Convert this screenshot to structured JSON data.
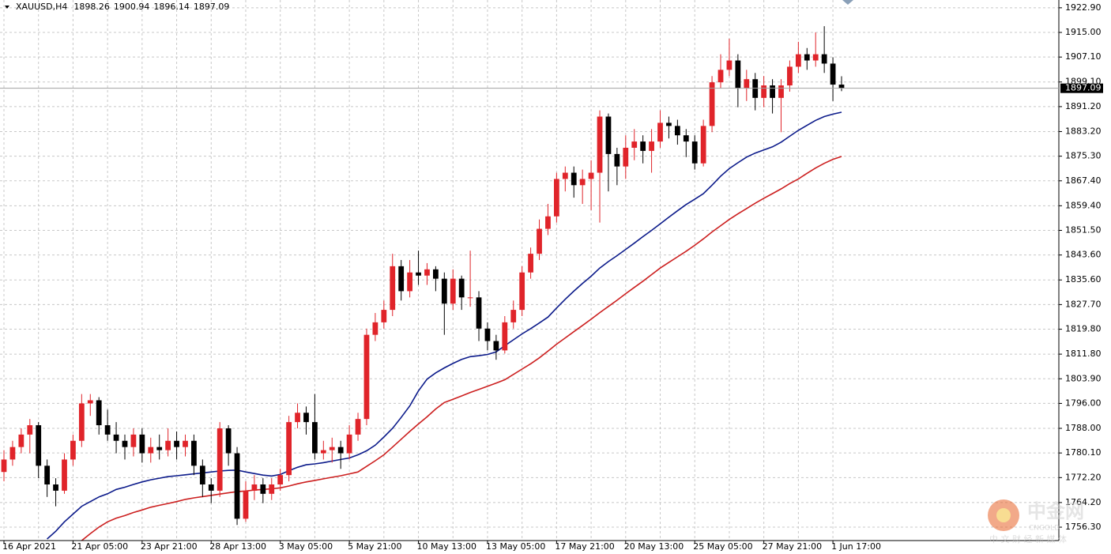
{
  "chart_data": {
    "type": "candlestick",
    "title": "XAUUSD,H4",
    "categories": [
      "16 Apr 2021",
      null,
      null,
      null,
      null,
      null,
      null,
      null,
      "21 Apr 05:00",
      null,
      null,
      null,
      null,
      null,
      null,
      null,
      "23 Apr 21:00",
      null,
      null,
      null,
      null,
      null,
      null,
      null,
      "28 Apr 13:00",
      null,
      null,
      null,
      null,
      null,
      null,
      null,
      "3 May 05:00",
      null,
      null,
      null,
      null,
      null,
      null,
      null,
      "5 May 21:00",
      null,
      null,
      null,
      null,
      null,
      null,
      null,
      "10 May 13:00",
      null,
      null,
      null,
      null,
      null,
      null,
      null,
      "13 May 05:00",
      null,
      null,
      null,
      null,
      null,
      null,
      null,
      "17 May 21:00",
      null,
      null,
      null,
      null,
      null,
      null,
      null,
      "20 May 13:00",
      null,
      null,
      null,
      null,
      null,
      null,
      null,
      "25 May 05:00",
      null,
      null,
      null,
      null,
      null,
      null,
      null,
      "27 May 21:00",
      null,
      null,
      null,
      null,
      null,
      null,
      null,
      "1 Jun 17:00",
      null
    ],
    "open": [
      1774,
      1778,
      1782,
      1786,
      1789,
      1776,
      1770,
      1768,
      1778,
      1784,
      1796,
      1797,
      1789,
      1786,
      1784,
      1782,
      1786,
      1780,
      1782,
      1781,
      1784,
      1782,
      1784,
      1776,
      1770,
      1768,
      1788,
      1780,
      1759,
      1768,
      1770,
      1767,
      1770,
      1773,
      1790,
      1793,
      1790,
      1780,
      1781,
      1782,
      1780,
      1786,
      1791,
      1818,
      1822,
      1826,
      1840,
      1832,
      1838,
      1837,
      1839,
      1836,
      1828,
      1836,
      1830,
      1830,
      1820,
      1816,
      1813,
      1822,
      1826,
      1838,
      1844,
      1852,
      1856,
      1868,
      1870,
      1866,
      1868,
      1870,
      1888,
      1876,
      1872,
      1878,
      1880,
      1877,
      1880,
      1886,
      1885,
      1882,
      1880,
      1873,
      1885,
      1899,
      1903,
      1906,
      1897,
      1900,
      1894,
      1898,
      1894,
      1898,
      1904,
      1908,
      1906,
      1908,
      1905,
      1898.26
    ],
    "high": [
      1781,
      1784,
      1788,
      1791,
      1790,
      1778,
      1772,
      1780,
      1786,
      1799,
      1799,
      1798,
      1794,
      1790,
      1786,
      1788,
      1788,
      1785,
      1786,
      1788,
      1787,
      1786,
      1786,
      1778,
      1772,
      1790,
      1789,
      1782,
      1771,
      1773,
      1772,
      1772,
      1775,
      1792,
      1796,
      1795,
      1799,
      1784,
      1785,
      1784,
      1789,
      1793,
      1820,
      1825,
      1829,
      1844,
      1842,
      1842,
      1845,
      1841,
      1840,
      1838,
      1839,
      1837,
      1845,
      1832,
      1822,
      1818,
      1824,
      1829,
      1840,
      1846,
      1855,
      1860,
      1870,
      1872,
      1872,
      1871,
      1874,
      1890,
      1889,
      1878,
      1882,
      1884,
      1882,
      1884,
      1890,
      1888,
      1887,
      1884,
      1882,
      1887,
      1901,
      1908,
      1913,
      1908,
      1903,
      1902,
      1901,
      1900,
      1900,
      1906,
      1912,
      1910,
      1915,
      1917,
      1907,
      1900.94
    ],
    "low": [
      1771,
      1776,
      1780,
      1780,
      1772,
      1766,
      1763,
      1767,
      1776,
      1782,
      1792,
      1786,
      1784,
      1780,
      1778,
      1779,
      1777,
      1777,
      1778,
      1779,
      1778,
      1779,
      1773,
      1766,
      1764,
      1766,
      1776,
      1757,
      1758,
      1765,
      1764,
      1765,
      1768,
      1771,
      1788,
      1786,
      1778,
      1778,
      1777,
      1775,
      1778,
      1784,
      1789,
      1816,
      1820,
      1824,
      1829,
      1830,
      1834,
      1834,
      1832,
      1818,
      1826,
      1826,
      1827,
      1816,
      1813,
      1810,
      1812,
      1820,
      1824,
      1836,
      1842,
      1850,
      1854,
      1864,
      1862,
      1860,
      1858,
      1854,
      1864,
      1866,
      1868,
      1874,
      1873,
      1870,
      1878,
      1881,
      1879,
      1875,
      1871,
      1872,
      1883,
      1897,
      1901,
      1891,
      1893,
      1890,
      1891,
      1889,
      1883,
      1896,
      1902,
      1903,
      1904,
      1902,
      1893,
      1896.14
    ],
    "close": [
      1778,
      1782,
      1786,
      1789,
      1776,
      1770,
      1768,
      1778,
      1784,
      1796,
      1797,
      1789,
      1786,
      1784,
      1782,
      1786,
      1780,
      1782,
      1781,
      1784,
      1782,
      1784,
      1776,
      1770,
      1768,
      1788,
      1780,
      1759,
      1768,
      1770,
      1767,
      1770,
      1773,
      1790,
      1793,
      1790,
      1780,
      1781,
      1782,
      1780,
      1786,
      1791,
      1818,
      1822,
      1826,
      1840,
      1832,
      1838,
      1837,
      1839,
      1836,
      1828,
      1836,
      1830,
      1830,
      1820,
      1816,
      1813,
      1822,
      1826,
      1838,
      1844,
      1852,
      1856,
      1868,
      1870,
      1866,
      1868,
      1870,
      1888,
      1876,
      1872,
      1878,
      1880,
      1877,
      1880,
      1886,
      1885,
      1882,
      1880,
      1873,
      1885,
      1899,
      1903,
      1906,
      1897,
      1900,
      1894,
      1898,
      1894,
      1898,
      1904,
      1908,
      1906,
      1908,
      1905,
      1898.26,
      1897.09
    ],
    "up_color": "#e0242a",
    "down_color": "#000000",
    "moving_averages": [
      {
        "color": "#0b1a8a",
        "values": [
          null,
          null,
          null,
          null,
          null,
          1752.5,
          1755,
          1758,
          1760.5,
          1763,
          1764.5,
          1766,
          1767,
          1768.4,
          1769.1,
          1770,
          1770.8,
          1771.5,
          1772,
          1772.5,
          1772.8,
          1773.1,
          1773.4,
          1773.7,
          1774,
          1774.3,
          1774.5,
          1774.6,
          1774,
          1773.5,
          1773,
          1772.7,
          1773.2,
          1774.4,
          1775.5,
          1776.3,
          1776.6,
          1777,
          1777.5,
          1778,
          1778.5,
          1779.5,
          1780.8,
          1782.6,
          1785.2,
          1788,
          1791.5,
          1795.2,
          1800,
          1803.8,
          1805.8,
          1807.4,
          1808.8,
          1810.1,
          1811,
          1811.3,
          1811.7,
          1812.5,
          1814.5,
          1816.4,
          1818.3,
          1820,
          1821.8,
          1823.7,
          1826.6,
          1829.4,
          1832,
          1834.5,
          1836.8,
          1839.4,
          1841.5,
          1843.4,
          1845.4,
          1847.4,
          1849.5,
          1851.5,
          1853.6,
          1855.7,
          1857.8,
          1859.8,
          1861.5,
          1863.3,
          1866,
          1868.9,
          1871.3,
          1873.2,
          1875,
          1876.3,
          1877.3,
          1878.3,
          1879.8,
          1881.7,
          1883.6,
          1885.2,
          1886.8,
          1888,
          1888.8,
          1889.4
        ]
      },
      {
        "color": "#cc1f1f",
        "values": [
          null,
          null,
          null,
          null,
          null,
          null,
          null,
          null,
          null,
          1752,
          1754.2,
          1756.3,
          1758,
          1759.2,
          1760,
          1761,
          1761.8,
          1762.7,
          1763.3,
          1763.9,
          1764.5,
          1765.2,
          1765.7,
          1766.1,
          1766.5,
          1766.9,
          1767.3,
          1767.7,
          1767.9,
          1768.2,
          1768.4,
          1768.6,
          1768.9,
          1769.5,
          1770.2,
          1770.8,
          1771.3,
          1771.8,
          1772.3,
          1772.8,
          1773.4,
          1774,
          1775.8,
          1777.6,
          1779.5,
          1782,
          1784.5,
          1787,
          1789.4,
          1791.7,
          1794.2,
          1796.3,
          1797.3,
          1798.4,
          1799.5,
          1800.5,
          1801.5,
          1802.5,
          1803.6,
          1805.3,
          1807,
          1808.7,
          1810.6,
          1812.8,
          1815,
          1817,
          1819,
          1821,
          1823,
          1825.1,
          1827.1,
          1829.1,
          1831.2,
          1833.2,
          1835.2,
          1837.3,
          1839.4,
          1841.2,
          1843,
          1844.8,
          1846.7,
          1848.8,
          1851,
          1853,
          1855,
          1856.8,
          1858.5,
          1860.2,
          1861.8,
          1863.3,
          1864.8,
          1866.5,
          1868,
          1869.8,
          1871.5,
          1873,
          1874.3,
          1875.2
        ]
      }
    ],
    "ylim": [
      1752.0,
      1925.4
    ],
    "yticks": [
      {
        "value": 1922.9,
        "label": "1922.90"
      },
      {
        "value": 1915,
        "label": "1915.00"
      },
      {
        "value": 1907.1,
        "label": "1907.10"
      },
      {
        "value": 1899.1,
        "label": "1899.10"
      },
      {
        "value": 1891.2,
        "label": "1891.20"
      },
      {
        "value": 1883.2,
        "label": "1883.20"
      },
      {
        "value": 1875.3,
        "label": "1875.30"
      },
      {
        "value": 1867.4,
        "label": "1867.40"
      },
      {
        "value": 1859.4,
        "label": "1859.40"
      },
      {
        "value": 1851.5,
        "label": "1851.50"
      },
      {
        "value": 1843.6,
        "label": "1843.60"
      },
      {
        "value": 1835.6,
        "label": "1835.60"
      },
      {
        "value": 1827.7,
        "label": "1827.70"
      },
      {
        "value": 1819.8,
        "label": "1819.80"
      },
      {
        "value": 1811.8,
        "label": "1811.80"
      },
      {
        "value": 1803.9,
        "label": "1803.90"
      },
      {
        "value": 1796,
        "label": "1796.00"
      },
      {
        "value": 1788,
        "label": "1788.00"
      },
      {
        "value": 1780.1,
        "label": "1780.10"
      },
      {
        "value": 1772.2,
        "label": "1772.20"
      },
      {
        "value": 1764.2,
        "label": "1764.20"
      },
      {
        "value": 1756.3,
        "label": "1756.30"
      }
    ],
    "grid": true
  },
  "watermark": {
    "logo": "中金网",
    "brand": "CNGOLD",
    "slogan": "中 文 财 经 新 媒 体"
  }
}
